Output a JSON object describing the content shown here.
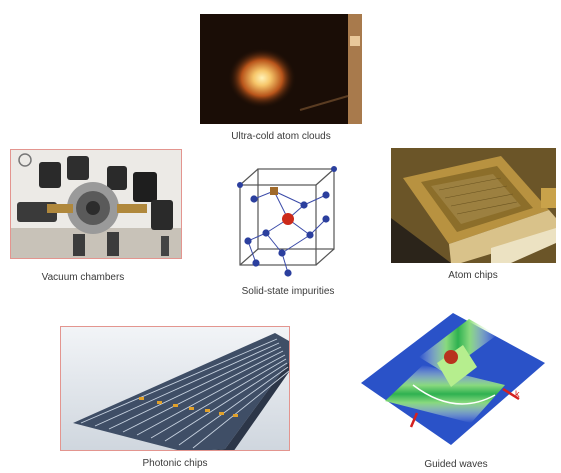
{
  "captions": {
    "atom_clouds": "Ultra-cold atom clouds",
    "vacuum": "Vacuum chambers",
    "solid_state": "Solid-state impurities",
    "atom_chips": "Atom chips",
    "photonic": "Photonic chips",
    "guided": "Guided waves"
  },
  "colors": {
    "frame": "#e3958f",
    "lattice_node": "#2b3f9e",
    "impurity": "#cc2a1a",
    "cloud_core": "#f6c66a",
    "waveguide": "#2fb64a",
    "chip_gold": "#c9a24a"
  }
}
